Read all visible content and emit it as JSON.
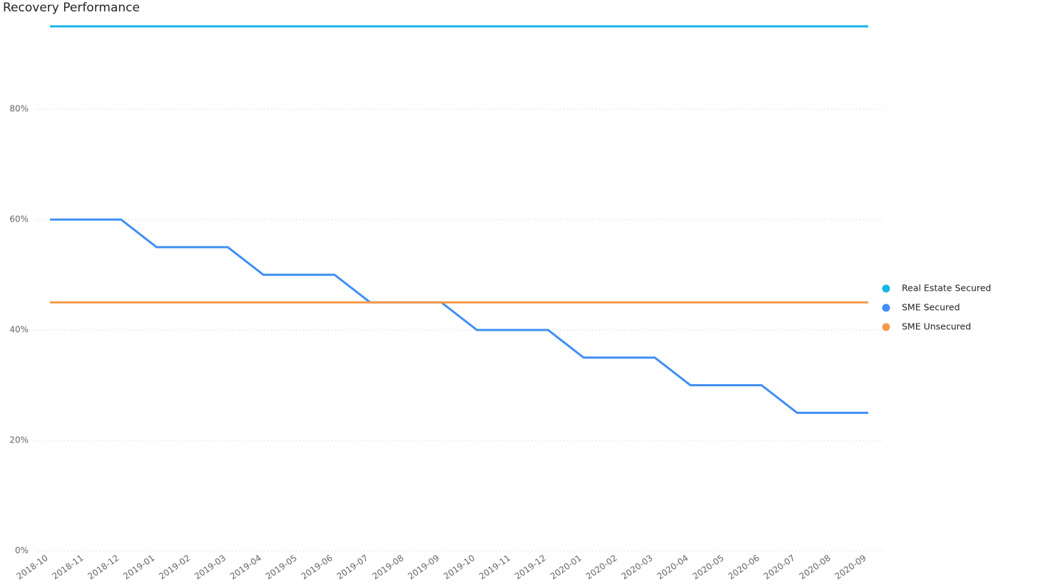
{
  "chart_data": {
    "type": "line",
    "title": "Recovery Performance",
    "categories": [
      "2018-10",
      "2018-11",
      "2018-12",
      "2019-01",
      "2019-02",
      "2019-03",
      "2019-04",
      "2019-05",
      "2019-06",
      "2019-07",
      "2019-08",
      "2019-09",
      "2019-10",
      "2019-11",
      "2019-12",
      "2020-01",
      "2020-02",
      "2020-03",
      "2020-04",
      "2020-05",
      "2020-06",
      "2020-07",
      "2020-08",
      "2020-09"
    ],
    "series": [
      {
        "name": "Real Estate Secured",
        "color": "#17b6e6",
        "values": [
          95,
          95,
          95,
          95,
          95,
          95,
          95,
          95,
          95,
          95,
          95,
          95,
          95,
          95,
          95,
          95,
          95,
          95,
          95,
          95,
          95,
          95,
          95,
          95
        ]
      },
      {
        "name": "SME Secured",
        "color": "#3f8ff4",
        "values": [
          60,
          60,
          60,
          55,
          55,
          55,
          50,
          50,
          50,
          45,
          45,
          45,
          40,
          40,
          40,
          35,
          35,
          35,
          30,
          30,
          30,
          25,
          25,
          25
        ]
      },
      {
        "name": "SME Unsecured",
        "color": "#f59a4c",
        "values": [
          45,
          45,
          45,
          45,
          45,
          45,
          45,
          45,
          45,
          45,
          45,
          45,
          45,
          45,
          45,
          45,
          45,
          45,
          45,
          45,
          45,
          45,
          45,
          45
        ]
      }
    ],
    "ylim": [
      0,
      95
    ],
    "yticks": [
      {
        "value": 0,
        "label": "0%"
      },
      {
        "value": 20,
        "label": "20%"
      },
      {
        "value": 40,
        "label": "40%"
      },
      {
        "value": 60,
        "label": "60%"
      },
      {
        "value": 80,
        "label": "80%"
      }
    ],
    "grid": true,
    "legend": "right"
  }
}
